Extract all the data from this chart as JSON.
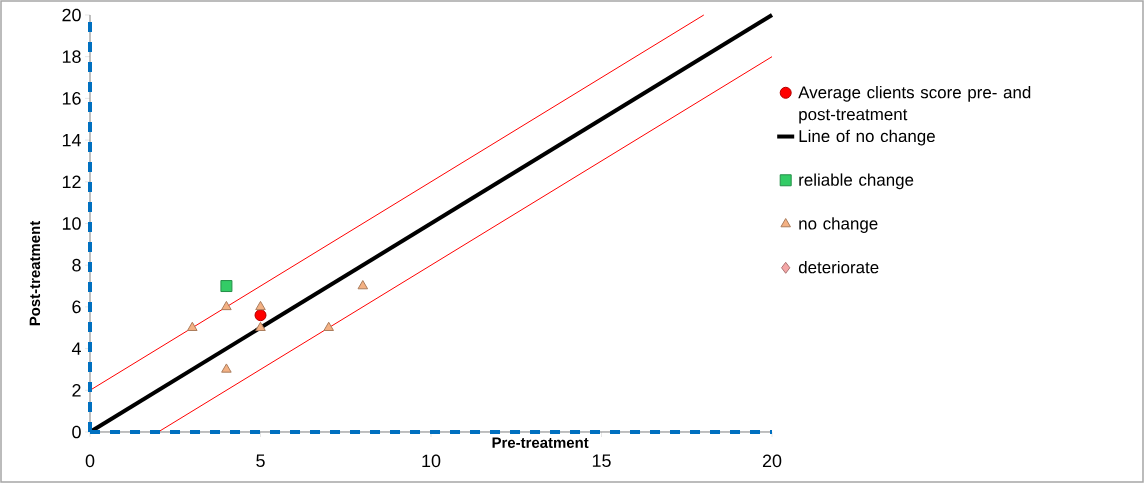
{
  "chart_data": {
    "type": "scatter",
    "xlabel": "Pre-treatment",
    "ylabel": "Post-treatment",
    "xlim": [
      0,
      20
    ],
    "ylim": [
      0,
      20
    ],
    "xticks": [
      0,
      5,
      10,
      15,
      20
    ],
    "yticks": [
      0,
      2,
      4,
      6,
      8,
      10,
      12,
      14,
      16,
      18,
      20
    ],
    "grid": false,
    "legend": "right",
    "series": [
      {
        "name": "Average clients score pre- and post-treatment",
        "marker": "circle",
        "color": "#ff0000",
        "x": [
          5
        ],
        "values": [
          5.6
        ]
      },
      {
        "name": "Line of no change",
        "type": "line",
        "marker": "none",
        "color": "#000000",
        "x": [
          0,
          20
        ],
        "values": [
          0,
          20
        ]
      },
      {
        "name": "reliable change",
        "marker": "square",
        "color": "#33cc66",
        "x": [
          4
        ],
        "values": [
          7
        ]
      },
      {
        "name": "no change",
        "marker": "triangle",
        "color": "#f4b183",
        "x": [
          3,
          4,
          4,
          5,
          5,
          7,
          8
        ],
        "values": [
          5,
          6,
          3,
          6,
          5,
          5,
          7
        ]
      },
      {
        "name": "deteriorate",
        "marker": "diamond",
        "color": "#f4a6a6"
      },
      {
        "type": "line",
        "marker": "none",
        "color": "#ff0000",
        "x": [
          0,
          18
        ],
        "values": [
          2,
          20
        ]
      },
      {
        "type": "line",
        "marker": "none",
        "color": "#ff0000",
        "x": [
          2,
          20
        ],
        "values": [
          0,
          18
        ]
      },
      {
        "type": "line",
        "marker": "none",
        "color": "#0070c0",
        "line_style": "dashed",
        "x": [
          0,
          20
        ],
        "values": [
          0,
          0
        ]
      },
      {
        "type": "line",
        "marker": "none",
        "color": "#0070c0",
        "line_style": "dashed",
        "x": [
          0,
          0
        ],
        "values": [
          0,
          20
        ]
      }
    ]
  }
}
